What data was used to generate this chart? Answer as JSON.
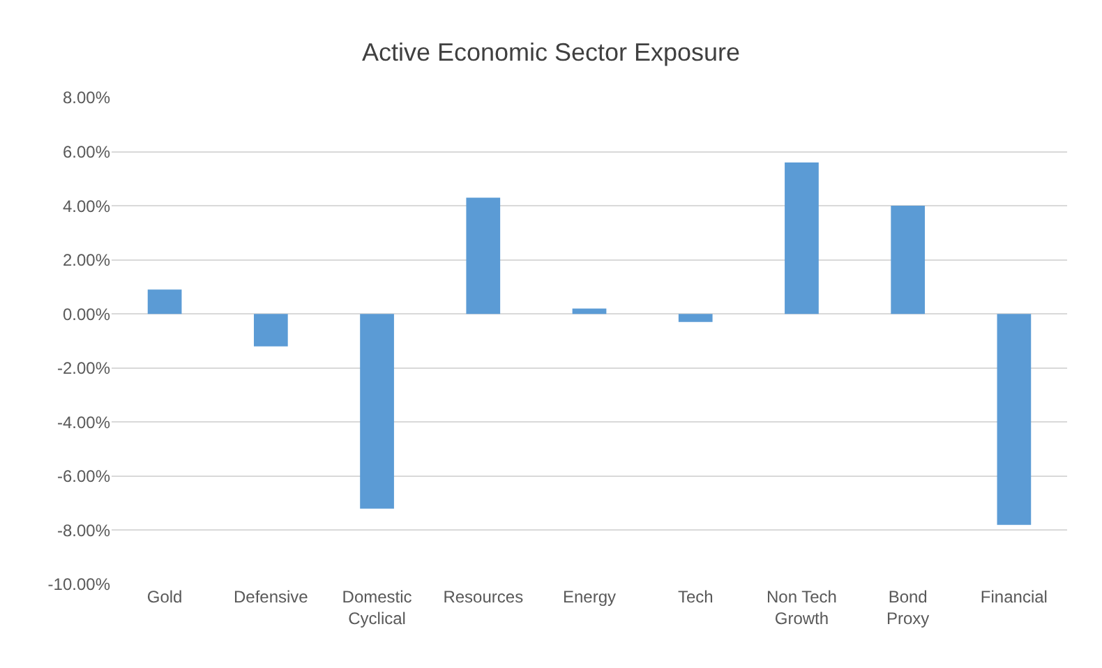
{
  "chart_data": {
    "type": "bar",
    "title": "Active Economic Sector Exposure",
    "categories": [
      "Gold",
      "Defensive",
      "Domestic Cyclical",
      "Resources",
      "Energy",
      "Tech",
      "Non Tech Growth",
      "Bond Proxy",
      "Financial"
    ],
    "values": [
      0.9,
      -1.2,
      -7.2,
      4.3,
      0.2,
      -0.3,
      5.6,
      4.0,
      -7.8
    ],
    "color": "#5b9bd5",
    "ylim": [
      -10,
      8
    ],
    "yticks": [
      {
        "value": -10,
        "label": "-10.00%"
      },
      {
        "value": -8,
        "label": "-8.00%"
      },
      {
        "value": -6,
        "label": "-6.00%"
      },
      {
        "value": -4,
        "label": "-4.00%"
      },
      {
        "value": -2,
        "label": "-2.00%"
      },
      {
        "value": 0,
        "label": "0.00%"
      },
      {
        "value": 2,
        "label": "2.00%"
      },
      {
        "value": 4,
        "label": "4.00%"
      },
      {
        "value": 6,
        "label": "6.00%"
      },
      {
        "value": 8,
        "label": "8.00%"
      }
    ],
    "grid": "y"
  }
}
